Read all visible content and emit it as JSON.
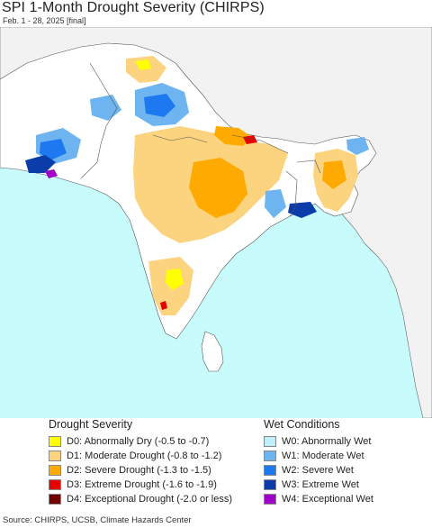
{
  "header": {
    "title": "SPI 1-Month Drought Severity (CHIRPS)",
    "subtitle": "Feb. 1 - 28, 2025 [final]"
  },
  "map": {
    "ocean_color": "#c8fcfc",
    "outside_land_color": "#f2f2f2",
    "study_land_color": "#ffffff",
    "border_color": "#666666"
  },
  "legend": {
    "drought": {
      "heading": "Drought Severity",
      "items": [
        {
          "label": "D0: Abnormally Dry (-0.5 to -0.7)",
          "color": "#ffff00"
        },
        {
          "label": "D1: Moderate Drought (-0.8 to -1.2)",
          "color": "#fcd37f"
        },
        {
          "label": "D2: Severe Drought (-1.3 to -1.5)",
          "color": "#ffaa00"
        },
        {
          "label": "D3: Extreme Drought (-1.6 to -1.9)",
          "color": "#e60000"
        },
        {
          "label": "D4: Exceptional Drought (-2.0 or less)",
          "color": "#730000"
        }
      ]
    },
    "wet": {
      "heading": "Wet Conditions",
      "items": [
        {
          "label": "W0: Abnormally Wet",
          "color": "#bfeefc"
        },
        {
          "label": "W1: Moderate Wet",
          "color": "#6eb4f0"
        },
        {
          "label": "W2: Severe Wet",
          "color": "#1e78f0"
        },
        {
          "label": "W3: Extreme Wet",
          "color": "#0a3caa"
        },
        {
          "label": "W4: Exceptional Wet",
          "color": "#a000c8"
        }
      ]
    }
  },
  "footer": {
    "source": "Source: CHIRPS, UCSB, Climate Hazards Center"
  }
}
